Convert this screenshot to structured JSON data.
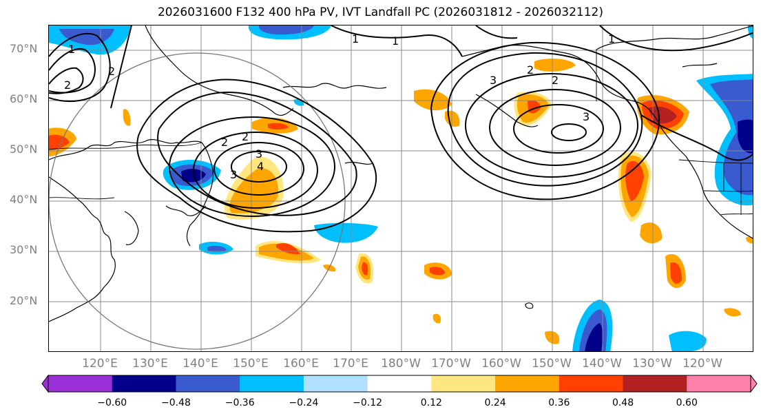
{
  "title": "2026031600 F132 400 hPa PV, IVT Landfall PC (2026031812 - 2026032112)",
  "map": {
    "projection": "PlateCarree",
    "lon_range": [
      "110°E",
      "110°W"
    ],
    "lat_range": [
      10,
      75
    ],
    "grid": true,
    "lat_labels": [
      "70°N",
      "60°N",
      "50°N",
      "40°N",
      "30°N",
      "20°N"
    ],
    "lon_labels": [
      "120°E",
      "130°E",
      "140°E",
      "150°E",
      "160°E",
      "170°E",
      "180°W",
      "170°W",
      "160°W",
      "150°W",
      "140°W",
      "130°W",
      "120°W"
    ],
    "contour_labels": [
      "1",
      "1",
      "1",
      "2",
      "2",
      "2",
      "2",
      "3",
      "3",
      "4",
      "1",
      "2",
      "2",
      "3",
      "3"
    ],
    "features": [
      "coastlines",
      "country-borders",
      "state-borders",
      "search-radius-circle"
    ]
  },
  "colorbar": {
    "ticks": [
      "−0.60",
      "−0.48",
      "−0.36",
      "−0.24",
      "−0.12",
      "0.12",
      "0.24",
      "0.36",
      "0.48",
      "0.60"
    ],
    "colors": [
      "#9b30d9",
      "#00008b",
      "#3a5bd0",
      "#00bfff",
      "#b0e0ff",
      "#ffffff",
      "#ffe680",
      "#ffa500",
      "#ff4000",
      "#b22222",
      "#ff80aa"
    ],
    "extend": "both"
  }
}
